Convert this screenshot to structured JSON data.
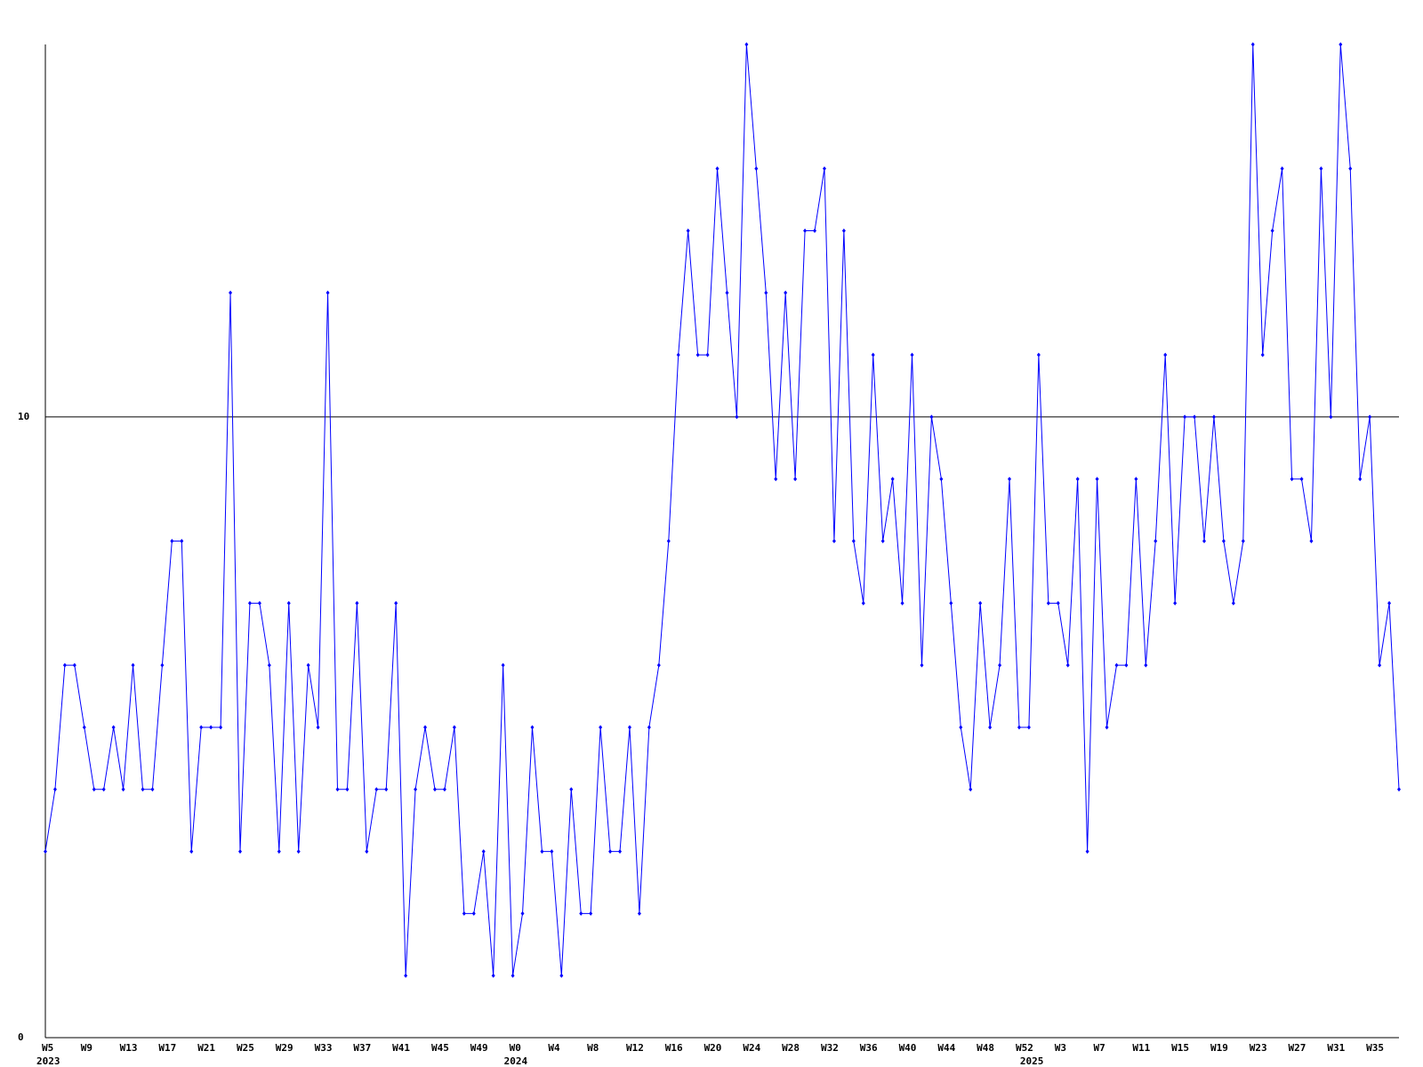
{
  "chart_data": {
    "type": "line",
    "categories": [
      "W5",
      null,
      null,
      null,
      "W9",
      null,
      null,
      null,
      "W13",
      null,
      null,
      null,
      "W17",
      null,
      null,
      null,
      "W21",
      null,
      null,
      null,
      "W25",
      null,
      null,
      null,
      "W29",
      null,
      null,
      null,
      "W33",
      null,
      null,
      null,
      "W37",
      null,
      null,
      null,
      "W41",
      null,
      null,
      null,
      "W45",
      null,
      null,
      null,
      "W49",
      null,
      null,
      null,
      "W0",
      null,
      null,
      null,
      "W4",
      null,
      null,
      null,
      "W8",
      null,
      null,
      null,
      "W12",
      null,
      null,
      null,
      "W16",
      null,
      null,
      null,
      "W20",
      null,
      null,
      null,
      "W24",
      null,
      null,
      null,
      "W28",
      null,
      null,
      null,
      "W32",
      null,
      null,
      null,
      "W36",
      null,
      null,
      null,
      "W40",
      null,
      null,
      null,
      "W44",
      null,
      null,
      null,
      "W48",
      null,
      null,
      null,
      "W52",
      null,
      null,
      null,
      "W3",
      null,
      null,
      null,
      "W7",
      null,
      null,
      null,
      "W11",
      null,
      null,
      null,
      "W15",
      null,
      null,
      null,
      "W19",
      null,
      null,
      null,
      "W23",
      null,
      null,
      null,
      "W27",
      null,
      null,
      null,
      "W31",
      null,
      null,
      null,
      "W35",
      null,
      null,
      null
    ],
    "years": [
      {
        "label": "2023",
        "index": 0
      },
      {
        "label": "2024",
        "index": 48
      },
      {
        "label": "2025",
        "index": 101
      }
    ],
    "series": [
      {
        "color": "#0000ff",
        "values": [
          3,
          4,
          6,
          6,
          5,
          4,
          4,
          5,
          4,
          6,
          4,
          4,
          6,
          8,
          8,
          3,
          5,
          5,
          5,
          12,
          3,
          7,
          7,
          6,
          3,
          7,
          3,
          6,
          5,
          12,
          4,
          4,
          7,
          3,
          4,
          4,
          7,
          1,
          4,
          5,
          4,
          4,
          5,
          2,
          2,
          3,
          1,
          6,
          1,
          2,
          5,
          3,
          3,
          1,
          4,
          2,
          2,
          5,
          3,
          3,
          5,
          2,
          5,
          6,
          8,
          11,
          13,
          11,
          11,
          14,
          12,
          10,
          16,
          14,
          12,
          9,
          12,
          9,
          13,
          13,
          14,
          8,
          13,
          8,
          7,
          11,
          8,
          9,
          7,
          11,
          6,
          10,
          9,
          7,
          5,
          4,
          7,
          5,
          6,
          9,
          5,
          5,
          11,
          7,
          7,
          6,
          9,
          3,
          9,
          5,
          6,
          6,
          9,
          6,
          8,
          11,
          7,
          10,
          10,
          8,
          10,
          8,
          7,
          8,
          16,
          11,
          13,
          14,
          9,
          9,
          8,
          14,
          10,
          16,
          14,
          9,
          10,
          6,
          7,
          4
        ]
      }
    ],
    "ylim": [
      0,
      16
    ],
    "yticks": [
      0,
      10
    ],
    "grid": true
  }
}
